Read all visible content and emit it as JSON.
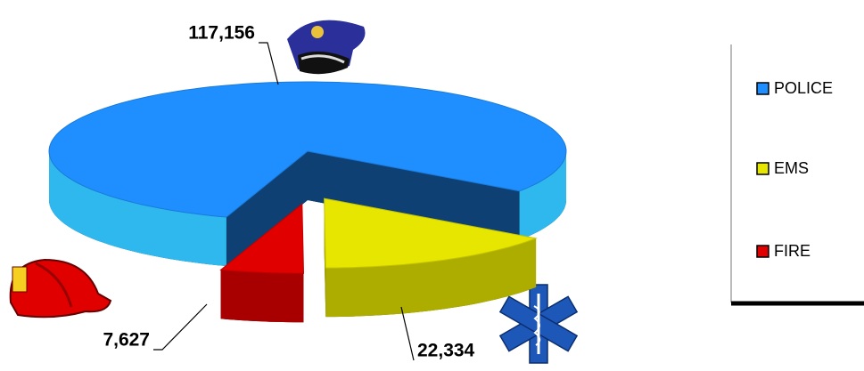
{
  "chart_data": {
    "type": "pie",
    "categories": [
      "POLICE",
      "EMS",
      "FIRE"
    ],
    "values": [
      117156,
      22334,
      7627
    ],
    "value_labels": [
      "117,156",
      "22,334",
      "7,627"
    ],
    "colors": [
      "#1f8fff",
      "#e6e600",
      "#e00000"
    ],
    "legend": "right"
  }
}
